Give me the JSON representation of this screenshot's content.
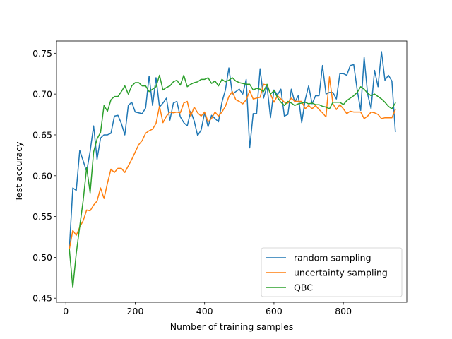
{
  "chart_data": {
    "type": "line",
    "title": "",
    "xlabel": "Number of training samples",
    "ylabel": "Test accuracy",
    "xlim": [
      -27,
      983
    ],
    "ylim": [
      0.445,
      0.765
    ],
    "xticks": [
      0,
      200,
      400,
      600,
      800
    ],
    "yticks": [
      0.45,
      0.5,
      0.55,
      0.6,
      0.65,
      0.7,
      0.75
    ],
    "ytick_labels": [
      "0.45",
      "0.50",
      "0.55",
      "0.60",
      "0.65",
      "0.70",
      "0.75"
    ],
    "grid": false,
    "legend_position": "lower-right",
    "series": [
      {
        "name": "random sampling",
        "color": "#1f77b4",
        "x": [
          10,
          20,
          30,
          40,
          50,
          60,
          70,
          80,
          90,
          100,
          110,
          120,
          130,
          140,
          150,
          160,
          170,
          180,
          190,
          200,
          210,
          220,
          230,
          240,
          250,
          260,
          270,
          280,
          290,
          300,
          310,
          320,
          330,
          340,
          350,
          360,
          370,
          380,
          390,
          400,
          410,
          420,
          430,
          440,
          450,
          460,
          470,
          480,
          490,
          500,
          510,
          520,
          530,
          540,
          550,
          560,
          570,
          580,
          590,
          600,
          610,
          620,
          630,
          640,
          650,
          660,
          670,
          680,
          690,
          700,
          710,
          720,
          730,
          740,
          750,
          760,
          770,
          780,
          790,
          800,
          810,
          820,
          830,
          840,
          850,
          860,
          870,
          880,
          890,
          900,
          910,
          920,
          930,
          940,
          950
        ],
        "values": [
          0.51,
          0.585,
          0.582,
          0.631,
          0.618,
          0.605,
          0.63,
          0.661,
          0.62,
          0.646,
          0.65,
          0.65,
          0.652,
          0.673,
          0.674,
          0.664,
          0.65,
          0.686,
          0.69,
          0.678,
          0.677,
          0.676,
          0.683,
          0.722,
          0.686,
          0.72,
          0.684,
          0.689,
          0.695,
          0.668,
          0.689,
          0.691,
          0.672,
          0.665,
          0.661,
          0.679,
          0.667,
          0.649,
          0.656,
          0.677,
          0.66,
          0.674,
          0.67,
          0.666,
          0.69,
          0.705,
          0.732,
          0.7,
          0.703,
          0.706,
          0.7,
          0.718,
          0.634,
          0.676,
          0.676,
          0.731,
          0.695,
          0.71,
          0.671,
          0.705,
          0.699,
          0.706,
          0.673,
          0.675,
          0.706,
          0.69,
          0.698,
          0.665,
          0.693,
          0.71,
          0.688,
          0.698,
          0.698,
          0.735,
          0.7,
          0.702,
          0.702,
          0.694,
          0.725,
          0.725,
          0.723,
          0.735,
          0.736,
          0.705,
          0.68,
          0.745,
          0.7,
          0.682,
          0.729,
          0.709,
          0.752,
          0.717,
          0.723,
          0.716,
          0.654
        ]
      },
      {
        "name": "uncertainty sampling",
        "color": "#ff7f0e",
        "x": [
          10,
          20,
          30,
          40,
          50,
          60,
          70,
          80,
          90,
          100,
          110,
          120,
          130,
          140,
          150,
          160,
          170,
          180,
          190,
          200,
          210,
          220,
          230,
          240,
          250,
          260,
          270,
          280,
          290,
          300,
          310,
          320,
          330,
          340,
          350,
          360,
          370,
          380,
          390,
          400,
          410,
          420,
          430,
          440,
          450,
          460,
          470,
          480,
          490,
          500,
          510,
          520,
          530,
          540,
          550,
          560,
          570,
          580,
          590,
          600,
          610,
          620,
          630,
          640,
          650,
          660,
          670,
          680,
          690,
          700,
          710,
          720,
          730,
          740,
          750,
          760,
          770,
          780,
          790,
          800,
          810,
          820,
          830,
          840,
          850,
          860,
          870,
          880,
          890,
          900,
          910,
          920,
          930,
          940,
          950
        ],
        "values": [
          0.51,
          0.533,
          0.527,
          0.537,
          0.545,
          0.558,
          0.557,
          0.564,
          0.569,
          0.585,
          0.572,
          0.591,
          0.608,
          0.604,
          0.609,
          0.609,
          0.604,
          0.612,
          0.62,
          0.629,
          0.638,
          0.643,
          0.652,
          0.655,
          0.657,
          0.664,
          0.685,
          0.665,
          0.673,
          0.678,
          0.677,
          0.678,
          0.677,
          0.689,
          0.691,
          0.673,
          0.684,
          0.677,
          0.673,
          0.678,
          0.666,
          0.67,
          0.678,
          0.673,
          0.678,
          0.685,
          0.697,
          0.703,
          0.693,
          0.691,
          0.688,
          0.693,
          0.704,
          0.694,
          0.695,
          0.696,
          0.712,
          0.711,
          0.7,
          0.69,
          0.698,
          0.694,
          0.69,
          0.689,
          0.695,
          0.691,
          0.691,
          0.691,
          0.682,
          0.686,
          0.682,
          0.686,
          0.681,
          0.677,
          0.672,
          0.721,
          0.688,
          0.681,
          0.687,
          0.682,
          0.676,
          0.679,
          0.678,
          0.678,
          0.678,
          0.67,
          0.673,
          0.678,
          0.677,
          0.675,
          0.67,
          0.671,
          0.671,
          0.671,
          0.681
        ]
      },
      {
        "name": "QBC",
        "color": "#2ca02c",
        "x": [
          10,
          20,
          30,
          40,
          50,
          60,
          70,
          80,
          90,
          100,
          110,
          120,
          130,
          140,
          150,
          160,
          170,
          180,
          190,
          200,
          210,
          220,
          230,
          240,
          250,
          260,
          270,
          280,
          290,
          300,
          310,
          320,
          330,
          340,
          350,
          360,
          370,
          380,
          390,
          400,
          410,
          420,
          430,
          440,
          450,
          460,
          470,
          480,
          490,
          500,
          510,
          520,
          530,
          540,
          550,
          560,
          570,
          580,
          590,
          600,
          610,
          620,
          630,
          640,
          650,
          660,
          670,
          680,
          690,
          700,
          710,
          720,
          730,
          740,
          750,
          760,
          770,
          780,
          790,
          800,
          810,
          820,
          830,
          840,
          850,
          860,
          870,
          880,
          890,
          900,
          910,
          920,
          930,
          940,
          950
        ],
        "values": [
          0.51,
          0.463,
          0.505,
          0.538,
          0.57,
          0.61,
          0.579,
          0.629,
          0.645,
          0.653,
          0.686,
          0.679,
          0.693,
          0.697,
          0.697,
          0.703,
          0.71,
          0.7,
          0.71,
          0.714,
          0.714,
          0.71,
          0.71,
          0.703,
          0.706,
          0.709,
          0.723,
          0.705,
          0.708,
          0.71,
          0.715,
          0.717,
          0.711,
          0.723,
          0.709,
          0.712,
          0.714,
          0.715,
          0.718,
          0.718,
          0.72,
          0.713,
          0.716,
          0.71,
          0.718,
          0.715,
          0.717,
          0.72,
          0.716,
          0.714,
          0.713,
          0.712,
          0.712,
          0.705,
          0.707,
          0.706,
          0.703,
          0.712,
          0.7,
          0.704,
          0.696,
          0.69,
          0.686,
          0.691,
          0.689,
          0.686,
          0.688,
          0.689,
          0.69,
          0.688,
          0.689,
          0.687,
          0.687,
          0.685,
          0.684,
          0.682,
          0.69,
          0.69,
          0.69,
          0.687,
          0.692,
          0.695,
          0.698,
          0.702,
          0.709,
          0.706,
          0.701,
          0.698,
          0.7,
          0.697,
          0.694,
          0.69,
          0.685,
          0.682,
          0.689
        ]
      }
    ]
  }
}
